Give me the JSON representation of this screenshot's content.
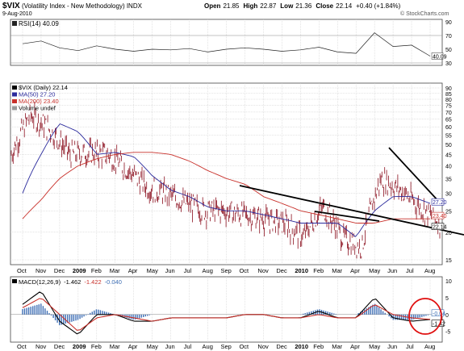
{
  "header": {
    "symbol": "$VIX",
    "name": "(Volatility Index - New Methodology) INDX",
    "date": "9-Aug-2010",
    "open_label": "Open",
    "open": "21.85",
    "high_label": "High",
    "high": "22.87",
    "low_label": "Low",
    "low": "21.36",
    "close_label": "Close",
    "close": "22.14",
    "change": "+0.40 (+1.84%)",
    "brand": "© StockCharts.com"
  },
  "rsi_panel": {
    "legend": "RSI(14) 40.09",
    "ticks": [
      "90",
      "70",
      "50",
      "30"
    ],
    "value_badge": "40.09"
  },
  "price_panel": {
    "legend": [
      {
        "text": "$VIX (Daily) 22.14",
        "color": "#000000"
      },
      {
        "text": "MA(50) 27.20",
        "color": "#2a2a9c"
      },
      {
        "text": "MA(200) 23.40",
        "color": "#c8302a"
      },
      {
        "text": "Volume undef",
        "color": "#000000"
      }
    ],
    "ticks": [
      "90",
      "85",
      "80",
      "75",
      "70",
      "65",
      "60",
      "55",
      "50",
      "45",
      "40",
      "35",
      "30",
      "25",
      "20",
      "15"
    ],
    "badges": [
      {
        "text": "27.20",
        "color": "#2a2a9c"
      },
      {
        "text": "23.40",
        "color": "#c8302a"
      },
      {
        "text": "22.14",
        "color": "#000000"
      }
    ],
    "x_labels": [
      "Oct",
      "Nov",
      "Dec",
      "2009",
      "Feb",
      "Mar",
      "Apr",
      "May",
      "Jun",
      "Jul",
      "Aug",
      "Sep",
      "Oct",
      "Nov",
      "Dec",
      "2010",
      "Feb",
      "Mar",
      "Apr",
      "May",
      "Jun",
      "Jul",
      "Aug"
    ]
  },
  "macd_panel": {
    "legend_prefix": "MACD(12,26,9)",
    "macd_value": "-1.462",
    "signal_value": "-1.422",
    "hist_value": "-0.040",
    "ticks": [
      "10",
      "5",
      "0",
      "-5"
    ],
    "badges": [
      "-0.04",
      "-1.42"
    ],
    "x_labels": [
      "Oct",
      "Nov",
      "Dec",
      "2009",
      "Feb",
      "Mar",
      "Apr",
      "May",
      "Jun",
      "Jul",
      "Aug",
      "Sep",
      "Oct",
      "Nov",
      "Dec",
      "2010",
      "Feb",
      "Mar",
      "Apr",
      "May",
      "Jun",
      "Jul",
      "Aug"
    ]
  },
  "colors": {
    "price_bar": "#8b0f1e",
    "ma50": "#2a2a9c",
    "ma200": "#c8302a",
    "grid": "#c9c9c9",
    "trendline": "#000000",
    "highlight_circle": "#e01010",
    "macd_hist": "#3f6fb5"
  },
  "chart_data": [
    {
      "type": "line",
      "panel": "RSI",
      "x": [
        "Oct",
        "Nov",
        "Dec",
        "2009",
        "Feb",
        "Mar",
        "Apr",
        "May",
        "Jun",
        "Jul",
        "Aug",
        "Sep",
        "Oct",
        "Nov",
        "Dec",
        "2010",
        "Feb",
        "Mar",
        "Apr",
        "May",
        "Jun",
        "Jul",
        "Aug"
      ],
      "series": [
        {
          "name": "RSI(14)",
          "values": [
            58,
            62,
            52,
            48,
            55,
            50,
            47,
            50,
            49,
            51,
            46,
            50,
            52,
            50,
            47,
            49,
            53,
            46,
            44,
            74,
            54,
            56,
            40
          ]
        }
      ],
      "ylim": [
        30,
        90
      ]
    },
    {
      "type": "line",
      "panel": "Price",
      "x": [
        "Oct",
        "Nov",
        "Dec",
        "2009",
        "Feb",
        "Mar",
        "Apr",
        "May",
        "Jun",
        "Jul",
        "Aug",
        "Sep",
        "Oct",
        "Nov",
        "Dec",
        "2010",
        "Feb",
        "Mar",
        "Apr",
        "May",
        "Jun",
        "Jul",
        "Aug"
      ],
      "series": [
        {
          "name": "$VIX (Daily)",
          "values": [
            45,
            68,
            58,
            45,
            46,
            45,
            38,
            32,
            30,
            27,
            25,
            25,
            24,
            23,
            22,
            19,
            26,
            19,
            17,
            35,
            31,
            26,
            22
          ]
        },
        {
          "name": "MA(50)",
          "values": [
            30,
            45,
            62,
            57,
            45,
            46,
            44,
            36,
            31,
            29,
            26,
            25,
            25,
            24,
            23,
            22,
            22,
            22,
            19,
            25,
            29,
            29,
            27
          ]
        },
        {
          "name": "MA(200)",
          "values": [
            23,
            28,
            35,
            40,
            43,
            45,
            46,
            46,
            45,
            42,
            38,
            35,
            33,
            29,
            27,
            25,
            24,
            23,
            22,
            22,
            23,
            23,
            23
          ]
        }
      ],
      "ylim": [
        15,
        90
      ],
      "log_scale": true
    },
    {
      "type": "line",
      "panel": "MACD",
      "x": [
        "Oct",
        "Nov",
        "Dec",
        "2009",
        "Feb",
        "Mar",
        "Apr",
        "May",
        "Jun",
        "Jul",
        "Aug",
        "Sep",
        "Oct",
        "Nov",
        "Dec",
        "2010",
        "Feb",
        "Mar",
        "Apr",
        "May",
        "Jun",
        "Jul",
        "Aug"
      ],
      "series": [
        {
          "name": "MACD",
          "values": [
            3,
            7,
            -2,
            -6,
            0,
            0,
            -2,
            -2,
            -1,
            -1,
            -1,
            -1,
            0,
            0,
            -1,
            -1,
            1,
            -1,
            -1,
            5,
            -1,
            -2,
            -1.462
          ]
        },
        {
          "name": "Signal",
          "values": [
            2,
            5,
            0,
            -5,
            -1,
            0,
            -1,
            -2,
            -1,
            -1,
            -1,
            -1,
            0,
            0,
            -1,
            -1,
            0,
            -1,
            -1,
            3,
            0,
            -1,
            -1.422
          ]
        }
      ],
      "ylim": [
        -7,
        10
      ]
    }
  ]
}
